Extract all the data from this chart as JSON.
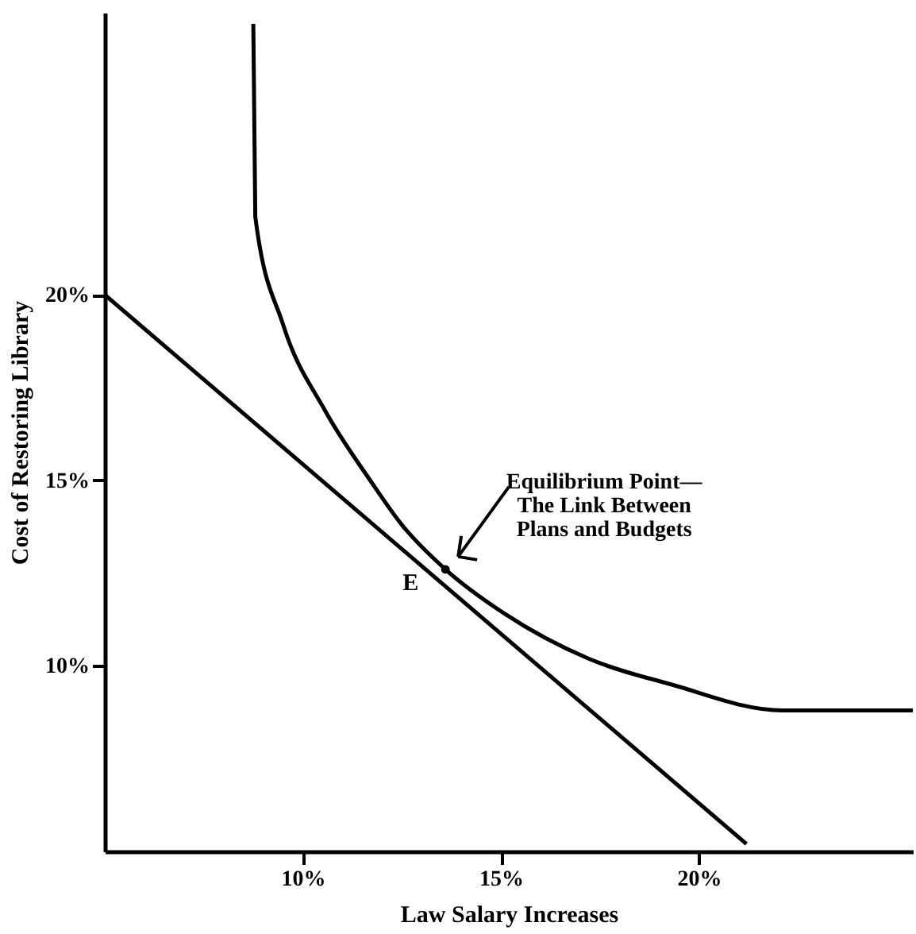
{
  "chart_data": {
    "type": "line",
    "xlabel": "Law Salary Increases",
    "ylabel": "Cost of Restoring Library",
    "xlim": [
      5,
      25.4
    ],
    "ylim": [
      5,
      27.6
    ],
    "xticks": [
      {
        "value": 10,
        "label": "10%"
      },
      {
        "value": 15,
        "label": "15%"
      },
      {
        "value": 20,
        "label": "20%"
      }
    ],
    "yticks": [
      {
        "value": 10,
        "label": "10%"
      },
      {
        "value": 15,
        "label": "15%"
      },
      {
        "value": 20,
        "label": "20%"
      }
    ],
    "grid": false,
    "marker": "none",
    "line_style": "solid",
    "series": [
      {
        "color": "#000000",
        "x": [
          5,
          21.2
        ],
        "values": [
          20,
          5.2
        ]
      },
      {
        "color": "#000000",
        "x": [
          8.75,
          8.8,
          9.5,
          10.55,
          11.7,
          12.5,
          13.6,
          15.1,
          17.2,
          19.3,
          22.1,
          25.4
        ],
        "values": [
          27.3,
          22.1,
          19.2,
          16.9,
          15.0,
          13.8,
          12.6,
          11.4,
          10.2,
          9.5,
          8.8,
          8.8
        ]
      }
    ],
    "annotations": [
      {
        "text": "E",
        "x": 13.6,
        "y": 12.6
      },
      {
        "text": "Equilibrium Point—\nThe Link Between\nPlans and Budgets",
        "x": 13.6,
        "y": 12.6
      }
    ]
  }
}
